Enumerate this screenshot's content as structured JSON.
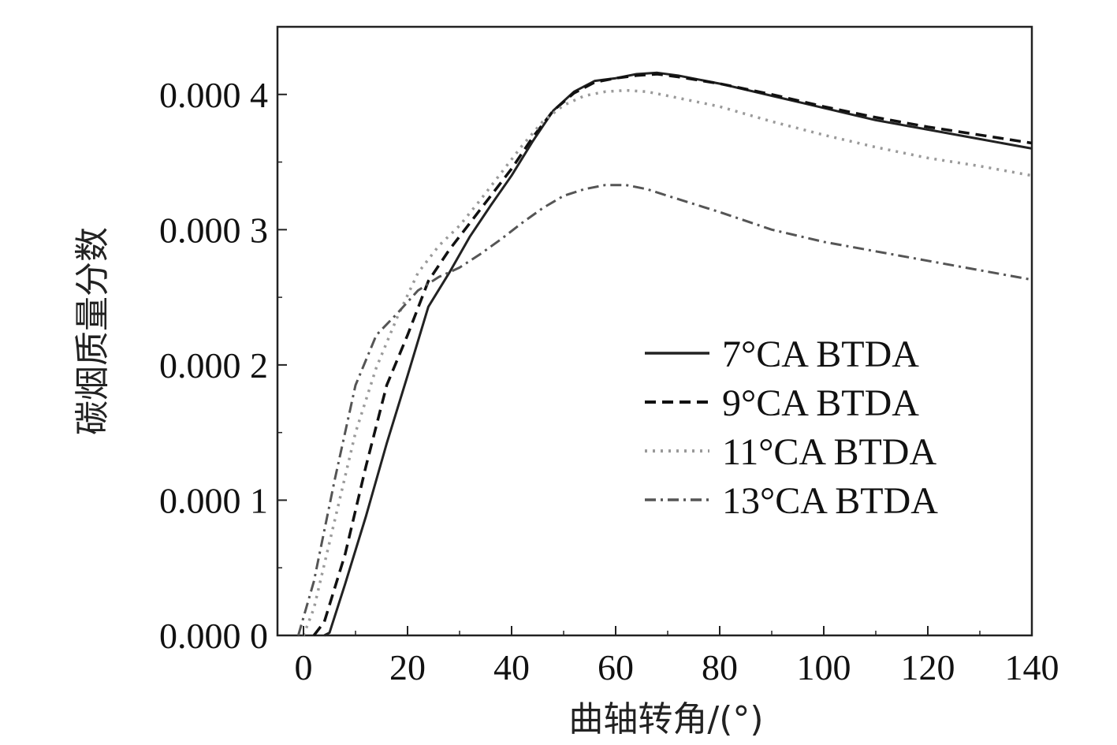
{
  "chart_data": {
    "type": "line",
    "xlabel": "曲轴转角/(°)",
    "ylabel": "碳烟质量分数",
    "xlim": [
      -5,
      140
    ],
    "ylim": [
      0,
      0.00045
    ],
    "xticks": [
      0,
      20,
      40,
      60,
      80,
      100,
      120,
      140
    ],
    "xtick_labels": [
      "0",
      "20",
      "40",
      "60",
      "80",
      "100",
      "120",
      "140"
    ],
    "yticks": [
      0,
      0.0001,
      0.0002,
      0.0003,
      0.0004
    ],
    "ytick_labels": [
      "0.000 0",
      "0.000 1",
      "0.000 2",
      "0.000 3",
      "0.000 4"
    ],
    "legend_position": "center-right",
    "grid": false,
    "series": [
      {
        "name": "7°CA BTDA",
        "style": "solid",
        "color": "#222222",
        "x": [
          4,
          5,
          8,
          12,
          16,
          20,
          24,
          28,
          32,
          36,
          40,
          44,
          48,
          52,
          56,
          60,
          64,
          68,
          72,
          80,
          90,
          100,
          110,
          120,
          130,
          140
        ],
        "y": [
          0,
          2e-06,
          3.8e-05,
          8.8e-05,
          0.000142,
          0.000192,
          0.000243,
          0.000268,
          0.000295,
          0.000318,
          0.00034,
          0.000365,
          0.000388,
          0.000402,
          0.00041,
          0.000412,
          0.000415,
          0.000416,
          0.000414,
          0.000408,
          0.000399,
          0.00039,
          0.000381,
          0.000374,
          0.000367,
          0.00036
        ]
      },
      {
        "name": "9°CA BTDA",
        "style": "dashed",
        "color": "#111111",
        "x": [
          2,
          4,
          8,
          12,
          16,
          20,
          24,
          28,
          32,
          36,
          40,
          44,
          48,
          52,
          56,
          60,
          64,
          68,
          72,
          80,
          90,
          100,
          110,
          120,
          130,
          140
        ],
        "y": [
          0,
          1e-05,
          6e-05,
          0.000125,
          0.000185,
          0.000222,
          0.000262,
          0.000285,
          0.000305,
          0.000325,
          0.000345,
          0.000368,
          0.000388,
          0.000401,
          0.000409,
          0.000412,
          0.000414,
          0.000415,
          0.000413,
          0.000408,
          0.0004,
          0.000391,
          0.000383,
          0.000376,
          0.00037,
          0.000364
        ]
      },
      {
        "name": "11°CA BTDA",
        "style": "dotted",
        "color": "#9a9a9a",
        "x": [
          0,
          2,
          6,
          10,
          14,
          18,
          22,
          26,
          30,
          34,
          38,
          42,
          46,
          50,
          54,
          58,
          62,
          66,
          70,
          80,
          90,
          100,
          110,
          120,
          130,
          140
        ],
        "y": [
          0,
          2e-05,
          8.5e-05,
          0.00015,
          0.000198,
          0.000235,
          0.000268,
          0.000288,
          0.000303,
          0.000322,
          0.000342,
          0.000362,
          0.00038,
          0.000392,
          0.000399,
          0.000402,
          0.000403,
          0.000402,
          0.000399,
          0.000391,
          0.00038,
          0.00037,
          0.000361,
          0.000353,
          0.000347,
          0.00034
        ]
      },
      {
        "name": "13°CA BTDA",
        "style": "dashdot",
        "color": "#555555",
        "x": [
          -1,
          2,
          6,
          10,
          14,
          18,
          22,
          26,
          30,
          34,
          38,
          42,
          46,
          50,
          54,
          58,
          62,
          66,
          70,
          80,
          90,
          100,
          110,
          120,
          130,
          140
        ],
        "y": [
          0,
          4e-05,
          0.000115,
          0.000185,
          0.000222,
          0.000238,
          0.000255,
          0.000265,
          0.000272,
          0.000282,
          0.000293,
          0.000305,
          0.000316,
          0.000325,
          0.00033,
          0.000333,
          0.000333,
          0.00033,
          0.000325,
          0.000313,
          0.0003,
          0.000291,
          0.000284,
          0.000277,
          0.00027,
          0.000263
        ]
      }
    ]
  }
}
